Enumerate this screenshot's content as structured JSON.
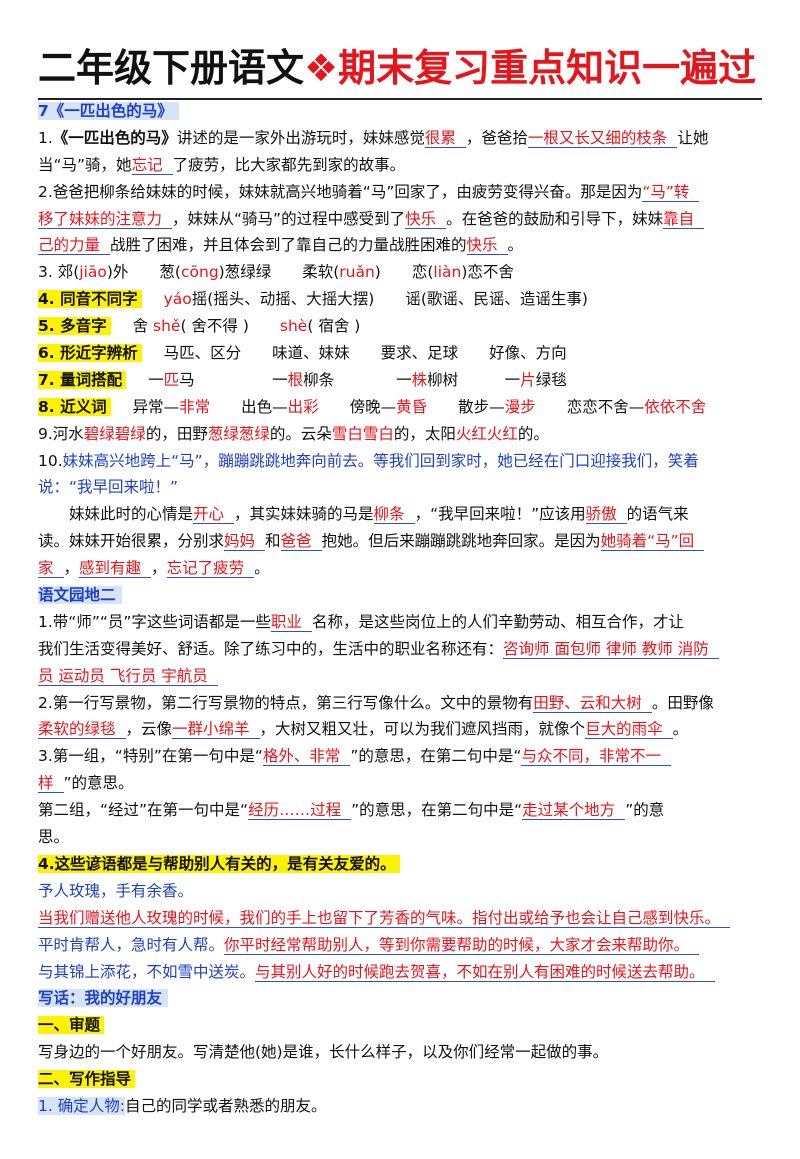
{
  "title": {
    "part1": "二年级下册语文",
    "part2": "❖期末复习重点知识一遍过"
  },
  "lines": [
    [
      "7《一匹出色的马》"
    ],
    [
      "1.",
      "《一匹出色的马》",
      "讲述的是一家外出游玩时，妹妹感觉",
      "很累",
      "，爸爸拾",
      "一根又长又细的枝条",
      "让她"
    ],
    [
      "当“马”骑，她",
      "忘记",
      "了疲劳，比大家都先到家的故事。"
    ],
    [
      "2.爸爸把柳条给妹妹的时候，妹妹就高兴地骑着“马”回家了，由疲劳变得兴奋。那是因为",
      "“马”转"
    ],
    [
      "移了妹妹的注意力",
      "，妹妹从“骑马”的过程中感受到了",
      "快乐",
      "。在爸爸的鼓励和引导下，妹妹",
      "靠自"
    ],
    [
      "己的力量",
      "战胜了困难，并且体会到了靠自己的力量战胜困难的",
      "快乐",
      "。"
    ],
    [
      "3. 郊(",
      "jiāo",
      ")外　　葱(",
      "cōng",
      ")葱绿绿　　柔软(",
      "ruǎn",
      ")　　恋(",
      "liàn",
      ")恋不舍"
    ],
    [
      "4. 同音不同字",
      "yáo",
      "摇(摇头、动摇、大摇大摆)　　谣(歌谣、民谣、造谣生事)"
    ],
    [
      "5. 多音字",
      "舍 ",
      "shě",
      "( 舍不得 )　　",
      "shè",
      "( 宿舍 )"
    ],
    [
      "6. 形近字辨析",
      "马匹、区分　　味道、妹妹　　要求、足球　　好像、方向"
    ],
    [
      "7. 量词搭配",
      "一",
      "匹",
      "马　　　　　一",
      "根",
      "柳条　　　　一",
      "株",
      "柳树　　　一",
      "片",
      "绿毯"
    ],
    [
      "8. 近义词",
      "异常—",
      "非常",
      "　　出色—",
      "出彩",
      "　　傍晚—",
      "黄昏",
      "　　散步—",
      "漫步",
      "　　恋恋不舍—",
      "依依不舍"
    ],
    [
      "9.河水",
      "碧绿碧绿",
      "的，田野",
      "葱绿葱绿",
      "的。云朵",
      "雪白雪白",
      "的，太阳",
      "火红火红",
      "的。"
    ],
    [
      "10.",
      "妹妹高兴地跨上“马”，蹦蹦跳跳地奔向前去。等我们回到家时，她已经在门口迎接我们，笑着"
    ],
    [
      "说：“我早回来啦！”"
    ],
    [
      "妹妹此时的心情是",
      "开心",
      "，其实妹妹骑的马是",
      "柳条",
      "，“我早回来啦！”应该用",
      "骄傲",
      "的语气来"
    ],
    [
      "读。妹妹开始很累，分别求",
      "妈妈",
      "和",
      "爸爸",
      "抱她。但后来蹦蹦跳跳地奔回家。是因为",
      "她骑着“马”回"
    ],
    [
      "家",
      "，",
      "感到有趣",
      "，",
      "忘记了疲劳",
      "。"
    ],
    [
      "语文园地二"
    ],
    [
      "1.带“师”“员”字这些词语都是一些",
      "职业",
      "名称，是这些岗位上的人们辛勤劳动、相互合作，才让"
    ],
    [
      "我们生活变得美好、舒适。除了练习中的，生活中的职业名称还有：",
      "咨询师 面包师 律师 教师 消防"
    ],
    [
      "员 运动员 飞行员 宇航员"
    ],
    [
      "2.第一行写景物，第二行写景物的特点，第三行写像什么。文中的景物有",
      "田野、云和大树",
      "。田野像"
    ],
    [
      "柔软的绿毯",
      "，云像",
      "一群小绵羊",
      "，大树又粗又壮，可以为我们遮风挡雨，就像个",
      "巨大的雨伞",
      "。"
    ],
    [
      "3.第一组，“特别”在第一句中是“",
      "格外、非常",
      "”的意思，在第二句中是“",
      "与众不同，非常不一"
    ],
    [
      "样",
      "”的意思。"
    ],
    [
      "第二组，“经过”在第一句中是“",
      "经历……过程",
      "”的意思，在第二句中是“",
      "走过某个地方",
      "”的意"
    ],
    [
      "思。"
    ],
    [
      "4.这些谚语都是与帮助别人有关的，是有关友爱的。"
    ],
    [
      "予人玫瑰，手有余香。"
    ],
    [
      "当我们赠送他人玫瑰的时候，我们的手上也留下了芳香的气味。指付出或给予也会让自己感到快乐。"
    ],
    [
      "平时肯帮人，急时有人帮。",
      "你平时经常帮助别人，等到你需要帮助的时候，大家才会来帮助你。"
    ],
    [
      "与其锦上添花，不如雪中送炭。",
      "与其别人好的时候跑去贺喜，不如在别人有困难的时候送去帮助。"
    ],
    [
      "写话：我的好朋友"
    ],
    [
      "一、审题"
    ],
    [
      "写身边的一个好朋友。写清楚他(她)是谁，长什么样子，以及你们经常一起做的事。"
    ],
    [
      "二、写作指导"
    ],
    [
      "1. 确定人物:",
      "自己的同学或者熟悉的朋友。"
    ]
  ]
}
